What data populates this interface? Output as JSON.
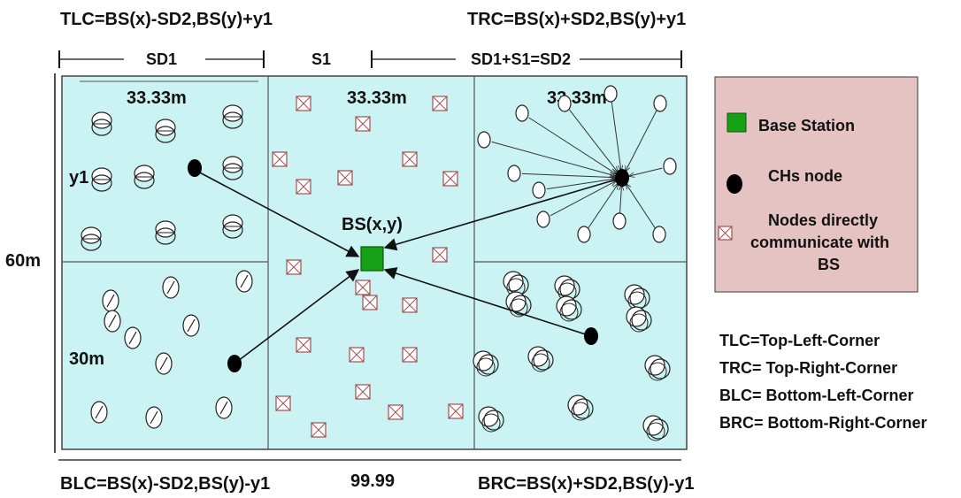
{
  "corners": {
    "tlc": "TLC=BS(x)-SD2,BS(y)+y1",
    "trc": "TRC=BS(x)+SD2,BS(y)+y1",
    "blc": "BLC=BS(x)-SD2,BS(y)-y1",
    "brc": "BRC=BS(x)+SD2,BS(y)-y1"
  },
  "dimensions": {
    "sd1": "SD1",
    "s1": "S1",
    "sd2_formula": "SD1+S1=SD2",
    "height": "60m",
    "width": "99.99",
    "cell_width": "33.33m",
    "cell_height": "30m",
    "y1": "y1"
  },
  "base_station_label": "BS(x,y)",
  "legend": {
    "items": [
      {
        "label": "Base Station",
        "icon": "green-square"
      },
      {
        "label": "CHs  node",
        "icon": "black-dot"
      },
      {
        "label_lines": [
          "Nodes directly",
          "communicate with",
          "BS"
        ],
        "icon": "crossed-box"
      }
    ]
  },
  "abbreviations": [
    "TLC=Top-Left-Corner",
    "TRC= Top-Right-Corner",
    "BLC= Bottom-Left-Corner",
    "BRC= Bottom-Right-Corner"
  ],
  "colors": {
    "field": "#ccf3f3",
    "legend_box": "#e6c3c3",
    "base_station": "#16a016",
    "ch_node": "#000000",
    "crossed_box": "#a05050"
  }
}
